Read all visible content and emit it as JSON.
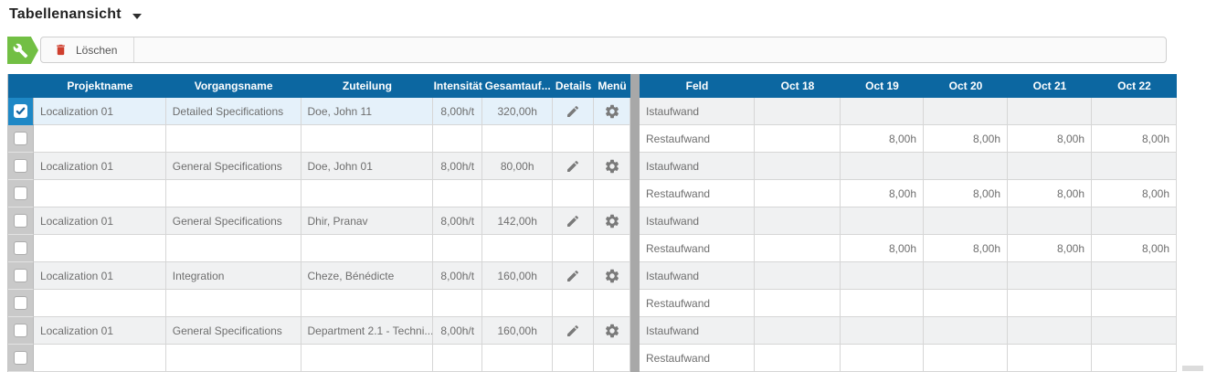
{
  "header": {
    "title": "Tabellenansicht"
  },
  "toolbar": {
    "delete_label": "Löschen"
  },
  "icons": {
    "badge": "wrench-icon",
    "delete": "trash-icon",
    "details": "pencil-icon",
    "menu": "gear-icon",
    "title": "chevron-down-icon"
  },
  "colors": {
    "header_blue": "#0c67a1",
    "selected_checkbox_blue": "#1e88c6",
    "selected_row_bg": "#e5f1fa",
    "shaded_row_bg": "#f0f1f2",
    "accent_green": "#72bf44",
    "delete_red": "#cf3f2e"
  },
  "left_table": {
    "headers": [
      "Projektname",
      "Vorgangsname",
      "Zuteilung",
      "Intensität",
      "Gesamtauf...",
      "Details",
      "Menü"
    ],
    "rows": [
      {
        "checked": true,
        "cells": [
          "Localization 01",
          "Detailed Specifications",
          "Doe, John 11",
          "8,00h/t",
          "320,00h"
        ],
        "actions": true
      },
      {
        "checked": false,
        "cells": [
          "",
          "",
          "",
          "",
          ""
        ],
        "actions": false
      },
      {
        "checked": false,
        "cells": [
          "Localization 01",
          "General Specifications",
          "Doe, John 01",
          "8,00h/t",
          "80,00h"
        ],
        "actions": true
      },
      {
        "checked": false,
        "cells": [
          "",
          "",
          "",
          "",
          ""
        ],
        "actions": false
      },
      {
        "checked": false,
        "cells": [
          "Localization 01",
          "General Specifications",
          "Dhir, Pranav",
          "8,00h/t",
          "142,00h"
        ],
        "actions": true
      },
      {
        "checked": false,
        "cells": [
          "",
          "",
          "",
          "",
          ""
        ],
        "actions": false
      },
      {
        "checked": false,
        "cells": [
          "Localization 01",
          "Integration",
          "Cheze, Bénédicte",
          "8,00h/t",
          "160,00h"
        ],
        "actions": true
      },
      {
        "checked": false,
        "cells": [
          "",
          "",
          "",
          "",
          ""
        ],
        "actions": false
      },
      {
        "checked": false,
        "cells": [
          "Localization 01",
          "General Specifications",
          "Department 2.1 - Techni...",
          "8,00h/t",
          "160,00h"
        ],
        "actions": true
      },
      {
        "checked": false,
        "cells": [
          "",
          "",
          "",
          "",
          ""
        ],
        "actions": false
      }
    ]
  },
  "right_table": {
    "headers": [
      "Feld",
      "Oct 18",
      "Oct 19",
      "Oct 20",
      "Oct 21",
      "Oct 22"
    ],
    "rows": [
      {
        "feld": "Istaufwand",
        "values": [
          "",
          "",
          "",
          "",
          ""
        ]
      },
      {
        "feld": "Restaufwand",
        "values": [
          "",
          "8,00h",
          "8,00h",
          "8,00h",
          "8,00h"
        ]
      },
      {
        "feld": "Istaufwand",
        "values": [
          "",
          "",
          "",
          "",
          ""
        ]
      },
      {
        "feld": "Restaufwand",
        "values": [
          "",
          "8,00h",
          "8,00h",
          "8,00h",
          "8,00h"
        ]
      },
      {
        "feld": "Istaufwand",
        "values": [
          "",
          "",
          "",
          "",
          ""
        ]
      },
      {
        "feld": "Restaufwand",
        "values": [
          "",
          "8,00h",
          "8,00h",
          "8,00h",
          "8,00h"
        ]
      },
      {
        "feld": "Istaufwand",
        "values": [
          "",
          "",
          "",
          "",
          ""
        ]
      },
      {
        "feld": "Restaufwand",
        "values": [
          "",
          "",
          "",
          "",
          ""
        ]
      },
      {
        "feld": "Istaufwand",
        "values": [
          "",
          "",
          "",
          "",
          ""
        ]
      },
      {
        "feld": "Restaufwand",
        "values": [
          "",
          "",
          "",
          "",
          ""
        ]
      }
    ]
  }
}
